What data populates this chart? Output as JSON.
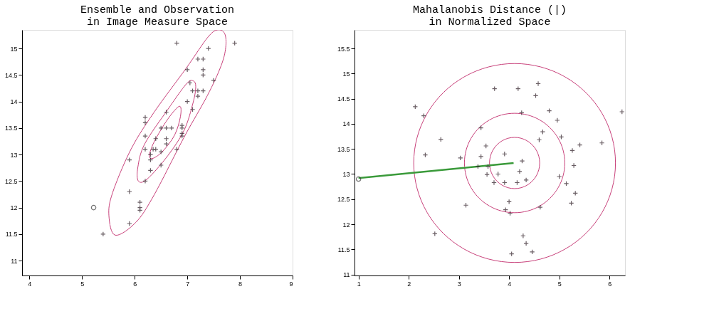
{
  "chart_data": [
    {
      "type": "scatter",
      "title": [
        "Ensemble and Observation",
        "in Image Measure Space"
      ],
      "xlim": [
        3.86,
        9
      ],
      "ylim": [
        10.72,
        15.35
      ],
      "xticks": [
        4,
        5,
        6,
        7,
        8,
        9
      ],
      "yticks": [
        11,
        11.5,
        12,
        12.5,
        13,
        13.5,
        14,
        14.5,
        15
      ],
      "grid": false,
      "series": [
        {
          "marker": "cross",
          "color": "#2a1a22",
          "x": [
            6.8,
            7.9,
            7.4,
            7.2,
            7.3,
            7.0,
            7.3,
            7.3,
            7.5,
            7.05,
            7.1,
            7.2,
            7.3,
            7.2,
            7.0,
            7.1,
            6.6,
            6.2,
            6.2,
            6.5,
            6.6,
            6.7,
            6.9,
            6.9,
            6.9,
            6.2,
            6.4,
            6.6,
            6.9,
            6.6,
            6.2,
            6.35,
            6.4,
            6.8,
            6.3,
            6.5,
            5.9,
            6.3,
            6.5,
            6.3,
            6.2,
            5.9,
            6.1,
            6.1,
            6.1,
            5.9,
            5.4
          ],
          "values": [
            15.1,
            15.1,
            15.0,
            14.8,
            14.8,
            14.6,
            14.6,
            14.5,
            14.4,
            14.35,
            14.2,
            14.2,
            14.2,
            14.1,
            14.0,
            13.85,
            13.8,
            13.7,
            13.6,
            13.5,
            13.5,
            13.5,
            13.55,
            13.5,
            13.4,
            13.35,
            13.3,
            13.3,
            13.35,
            13.2,
            13.1,
            13.1,
            13.1,
            13.1,
            13.0,
            13.05,
            12.9,
            12.9,
            12.8,
            12.7,
            12.5,
            12.3,
            12.1,
            12.0,
            11.95,
            11.7,
            11.5
          ]
        },
        {
          "marker": "circle",
          "color": "#333333",
          "x": [
            5.22
          ],
          "values": [
            12.0
          ]
        }
      ]
    },
    {
      "type": "scatter",
      "title": [
        "Mahalanobis Distance (|)",
        "in Normalized Space"
      ],
      "xlim": [
        0.92,
        6.31
      ],
      "ylim": [
        10.98,
        15.87
      ],
      "xticks": [
        1,
        2,
        3,
        4,
        5,
        6
      ],
      "yticks": [
        11,
        11.5,
        12,
        12.5,
        13,
        13.5,
        14,
        14.5,
        15,
        15.5
      ],
      "grid": false,
      "series": [
        {
          "type": "line",
          "color": "#3a9a3a",
          "x": [
            1.0,
            4.09
          ],
          "values": [
            12.92,
            13.22
          ]
        },
        {
          "marker": "cross",
          "color": "#2a1a22",
          "x": [
            2.13,
            2.3,
            3.71,
            4.18,
            4.58,
            4.53,
            4.8,
            4.25,
            4.96,
            6.25,
            3.44,
            4.67,
            2.64,
            4.6,
            5.04,
            5.41,
            5.85,
            3.54,
            5.26,
            2.33,
            3.44,
            3.91,
            3.03,
            4.26,
            5.29,
            3.38,
            3.58,
            4.21,
            3.56,
            3.78,
            5.0,
            3.7,
            3.91,
            4.16,
            4.34,
            5.14,
            5.32,
            4.0,
            3.14,
            5.24,
            3.93,
            4.02,
            4.62,
            2.52,
            4.28,
            4.34,
            4.46,
            4.05
          ],
          "values": [
            14.34,
            14.16,
            14.7,
            14.7,
            14.8,
            14.56,
            14.26,
            14.22,
            14.07,
            14.24,
            13.92,
            13.84,
            13.69,
            13.68,
            13.74,
            13.58,
            13.62,
            13.56,
            13.47,
            13.38,
            13.35,
            13.4,
            13.32,
            13.26,
            13.17,
            13.15,
            13.15,
            13.05,
            12.99,
            13.0,
            12.95,
            12.83,
            12.83,
            12.83,
            12.88,
            12.81,
            12.62,
            12.45,
            12.38,
            12.42,
            12.29,
            12.22,
            12.34,
            11.81,
            11.77,
            11.62,
            11.45,
            11.41
          ]
        },
        {
          "marker": "circle",
          "color": "#333333",
          "x": [
            1.0
          ],
          "values": [
            12.9
          ]
        }
      ]
    }
  ]
}
